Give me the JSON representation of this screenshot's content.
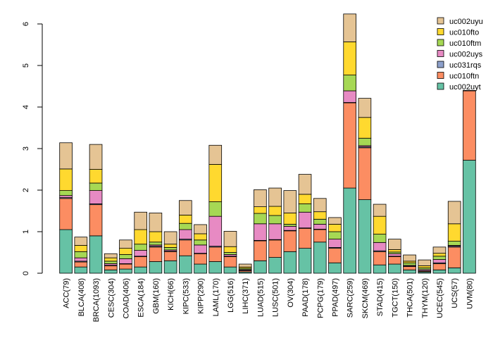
{
  "chart_data": {
    "type": "bar",
    "stacked": true,
    "title": "",
    "xlabel": "",
    "ylabel": "",
    "ylim": [
      0,
      6.3
    ],
    "yticks": [
      0,
      1,
      2,
      3,
      4,
      5,
      6
    ],
    "legend_position": "top-right",
    "categories": [
      "ACC(79)",
      "BLCA(408)",
      "BRCA(1093)",
      "CESC(304)",
      "COAD(406)",
      "ESCA(184)",
      "GBM(160)",
      "KICH(66)",
      "KIPC(533)",
      "KIPP(290)",
      "LAML(170)",
      "LGG(516)",
      "LIHC(371)",
      "LUAD(515)",
      "LUSC(501)",
      "OV(304)",
      "PAAD(178)",
      "PCPG(179)",
      "PPAD(497)",
      "SARC(259)",
      "SKCM(469)",
      "STAD(415)",
      "TGCT(150)",
      "THCA(501)",
      "THYM(120)",
      "UCEC(545)",
      "UCS(57)",
      "UVM(80)"
    ],
    "series": [
      {
        "name": "uc002uyt",
        "color": "#66c2a5",
        "values": [
          1.05,
          0.15,
          0.9,
          0.08,
          0.1,
          0.15,
          0.28,
          0.3,
          0.42,
          0.22,
          0.28,
          0.15,
          0.03,
          0.3,
          0.38,
          0.52,
          0.6,
          0.75,
          0.25,
          2.05,
          1.77,
          0.2,
          0.22,
          0.08,
          0.03,
          0.08,
          0.13,
          2.72
        ]
      },
      {
        "name": "uc010ftn",
        "color": "#fc8d62",
        "values": [
          0.75,
          0.12,
          0.75,
          0.1,
          0.12,
          0.25,
          0.35,
          0.22,
          0.38,
          0.25,
          0.35,
          0.25,
          0.03,
          0.48,
          0.42,
          0.5,
          0.48,
          0.3,
          0.35,
          2.05,
          1.25,
          0.32,
          0.18,
          0.08,
          0.02,
          0.15,
          0.5,
          1.67
        ]
      },
      {
        "name": "uc031rqs",
        "color": "#8da0cb",
        "values": [
          0.02,
          0.02,
          0.02,
          0.01,
          0.01,
          0.01,
          0.02,
          0.01,
          0.02,
          0.01,
          0.02,
          0.01,
          0.01,
          0.01,
          0.01,
          0.01,
          0.01,
          0.01,
          0.02,
          0.01,
          0.02,
          0.02,
          0.01,
          0.01,
          0.01,
          0.02,
          0.02,
          0.01
        ]
      },
      {
        "name": "uc002uys",
        "color": "#e78ac3",
        "values": [
          0.05,
          0.08,
          0.32,
          0.04,
          0.12,
          0.14,
          0.03,
          0.03,
          0.23,
          0.2,
          0.72,
          0.04,
          0.02,
          0.4,
          0.38,
          0.1,
          0.38,
          0.12,
          0.2,
          0.28,
          0.03,
          0.2,
          0.06,
          0.02,
          0.03,
          0.08,
          0.02,
          0
        ]
      },
      {
        "name": "uc010ftm",
        "color": "#a6d854",
        "values": [
          0.12,
          0.15,
          0.18,
          0.06,
          0.1,
          0.15,
          0.07,
          0.06,
          0.15,
          0.12,
          0.35,
          0.05,
          0.03,
          0.25,
          0.2,
          0.05,
          0.2,
          0.12,
          0.18,
          0.38,
          0.18,
          0.2,
          0.04,
          0.06,
          0.04,
          0.08,
          0.1,
          0
        ]
      },
      {
        "name": "uc010fto",
        "color": "#ffd92f",
        "values": [
          0.52,
          0.15,
          0.33,
          0.08,
          0.15,
          0.35,
          0.25,
          0.08,
          0.2,
          0.15,
          0.9,
          0.14,
          0.03,
          0.16,
          0.22,
          0.27,
          0.23,
          0.18,
          0.18,
          0.8,
          0.5,
          0.43,
          0.06,
          0.04,
          0.05,
          0.07,
          0.42,
          0
        ]
      },
      {
        "name": "uc002uyu",
        "color": "#e5c494",
        "values": [
          0.63,
          0.2,
          0.6,
          0.1,
          0.2,
          0.42,
          0.45,
          0.3,
          0.35,
          0.22,
          0.46,
          0.37,
          0.07,
          0.41,
          0.44,
          0.54,
          0.48,
          0.32,
          0.16,
          0.67,
          0.46,
          0.29,
          0.25,
          0.15,
          0.14,
          0.15,
          0.54,
          0
        ]
      }
    ]
  }
}
